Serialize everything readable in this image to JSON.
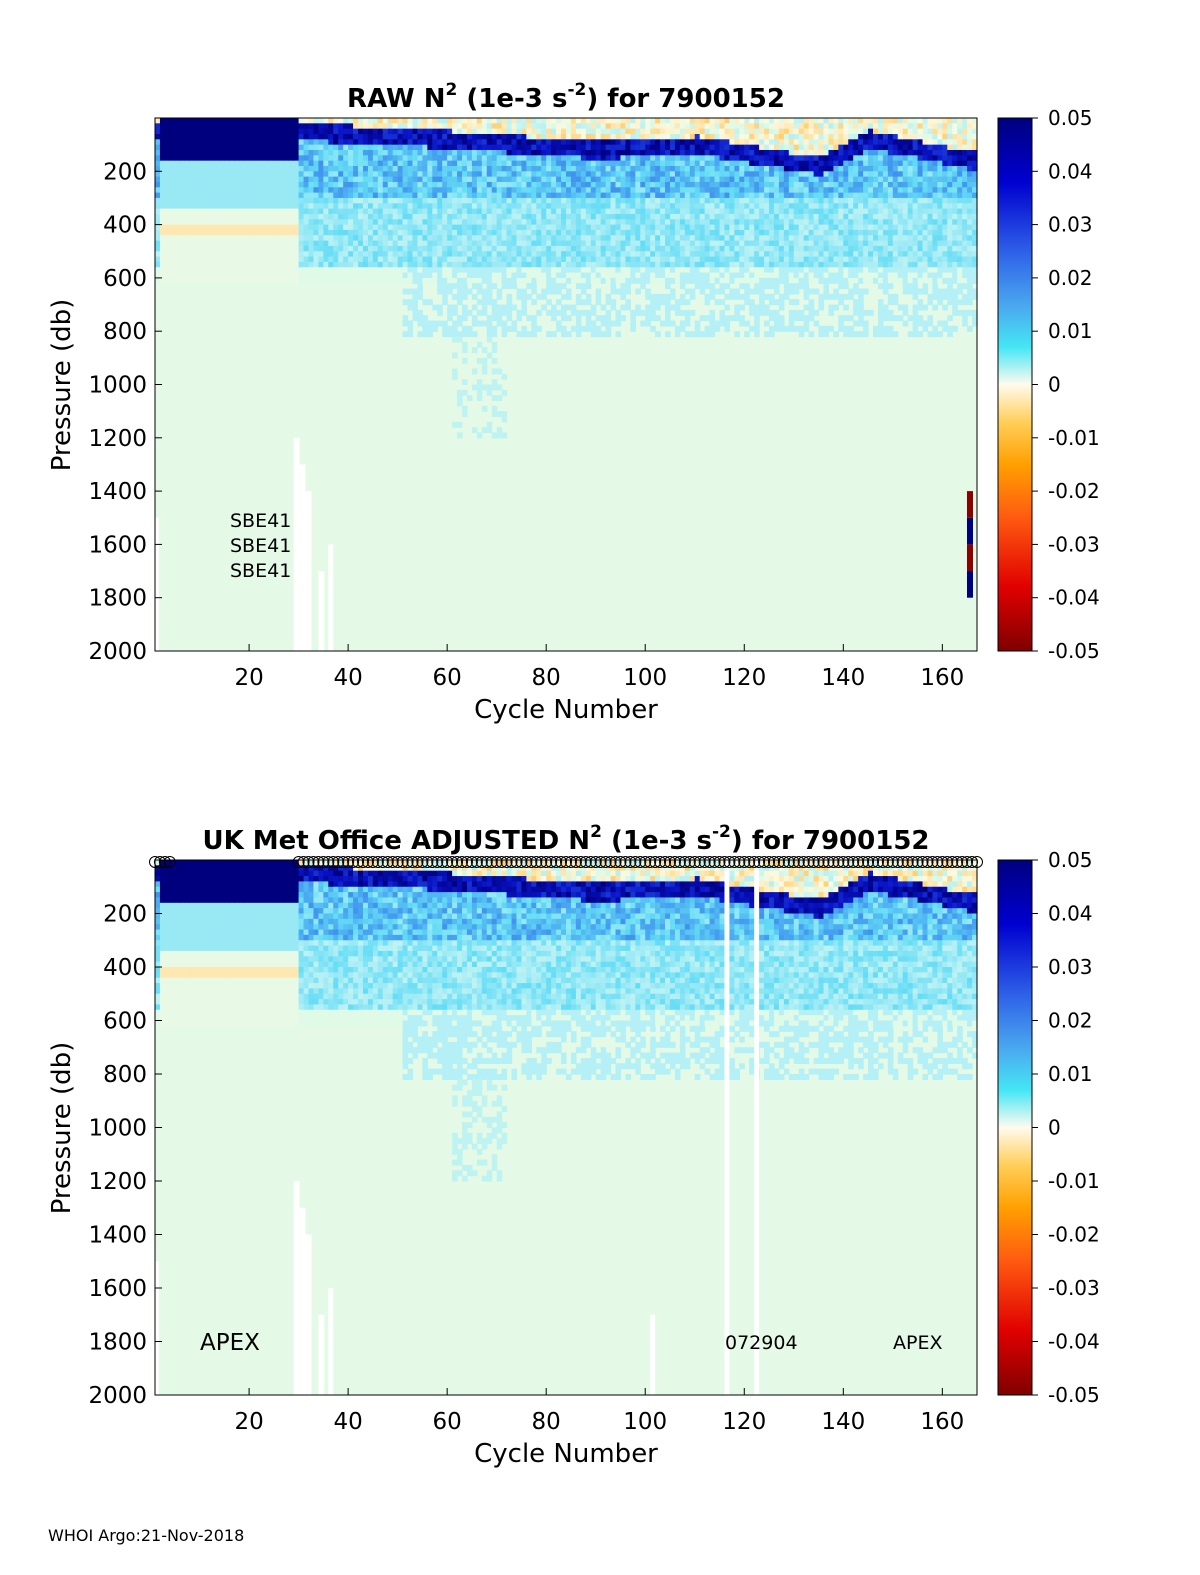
{
  "chart_data": [
    {
      "type": "heatmap",
      "title_parts": [
        "RAW N",
        "2",
        " (1e-3 s",
        "-2",
        ") for 7900152"
      ],
      "xlabel": "Cycle Number",
      "ylabel": "Pressure (db)",
      "xlim": [
        1,
        167
      ],
      "ylim": [
        2000,
        0
      ],
      "y_reversed": true,
      "xticks": [
        "20",
        "40",
        "60",
        "80",
        "100",
        "120",
        "140",
        "160"
      ],
      "yticks": [
        "200",
        "400",
        "600",
        "800",
        "1000",
        "1200",
        "1400",
        "1600",
        "1800",
        "2000"
      ],
      "colorbar": {
        "range": [
          -0.05,
          0.05
        ],
        "ticks": [
          "0.05",
          "0.04",
          "0.03",
          "0.02",
          "0.01",
          "0",
          "-0.01",
          "-0.02",
          "-0.03",
          "-0.04",
          "-0.05"
        ],
        "colormap": "diverging blue-cyan-cream-orange-red"
      },
      "surface_strong_layer": {
        "pressure_range": [
          0,
          150
        ],
        "cycles": [
          2,
          29
        ],
        "value": 0.05
      },
      "thermocline_trend": [
        {
          "cycle": 30,
          "pressure": 50
        },
        {
          "cycle": 60,
          "pressure": 80
        },
        {
          "cycle": 90,
          "pressure": 120
        },
        {
          "cycle": 110,
          "pressure": 100
        },
        {
          "cycle": 135,
          "pressure": 180
        },
        {
          "cycle": 145,
          "pressure": 80
        },
        {
          "cycle": 166,
          "pressure": 160
        }
      ],
      "annotations": [
        "SBE41",
        "SBE41",
        "SBE41"
      ],
      "qc_flags_right_edge": [
        {
          "p0": 1400,
          "p1": 1500,
          "color": "#8b0000"
        },
        {
          "p0": 1500,
          "p1": 1600,
          "color": "#00007f"
        },
        {
          "p0": 1600,
          "p1": 1700,
          "color": "#8b0000"
        },
        {
          "p0": 1700,
          "p1": 1800,
          "color": "#00007f"
        }
      ]
    },
    {
      "type": "heatmap",
      "title_parts": [
        "UK Met Office  ADJUSTED N",
        "2",
        " (1e-3 s",
        "-2",
        ") for 7900152"
      ],
      "xlabel": "Cycle Number",
      "ylabel": "Pressure (db)",
      "xlim": [
        1,
        167
      ],
      "ylim": [
        2000,
        0
      ],
      "y_reversed": true,
      "xticks": [
        "20",
        "40",
        "60",
        "80",
        "100",
        "120",
        "140",
        "160"
      ],
      "yticks": [
        "200",
        "400",
        "600",
        "800",
        "1000",
        "1200",
        "1400",
        "1600",
        "1800",
        "2000"
      ],
      "colorbar": {
        "range": [
          -0.05,
          0.05
        ],
        "ticks": [
          "0.05",
          "0.04",
          "0.03",
          "0.02",
          "0.01",
          "0",
          "-0.01",
          "-0.02",
          "-0.03",
          "-0.04",
          "-0.05"
        ],
        "colormap": "diverging blue-cyan-cream-orange-red"
      },
      "missing_profile_cycles": [
        101,
        116,
        122
      ],
      "annotations": [
        {
          "text": "APEX",
          "cycle": 16,
          "pressure": 1800,
          "size": "large"
        },
        {
          "text": "072904",
          "cycle": 124,
          "pressure": 1800,
          "size": "small"
        },
        {
          "text": "APEX",
          "cycle": 155,
          "pressure": 1800,
          "size": "small"
        }
      ],
      "top_markers": "circle per cycle (1-4, 30-167)"
    }
  ],
  "footer": "WHOI Argo:21-Nov-2018"
}
